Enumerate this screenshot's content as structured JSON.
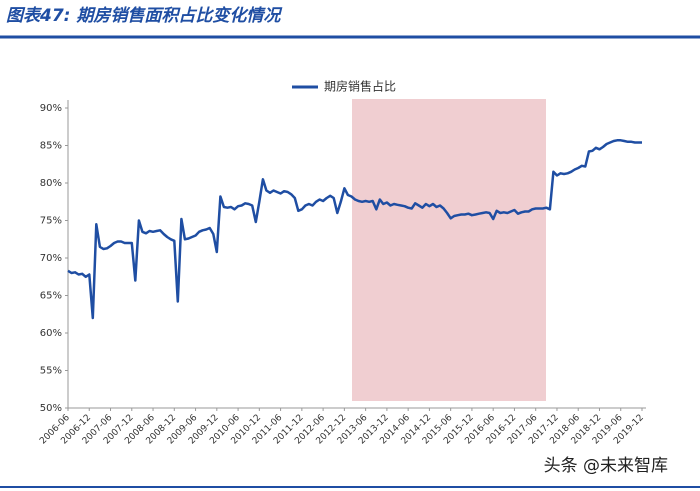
{
  "header": {
    "title": "图表47: 期房销售面积占比变化情况"
  },
  "watermark": "头条 @未来智库",
  "chart_data": {
    "type": "line",
    "categories": [
      "2006-06",
      null,
      null,
      null,
      null,
      null,
      "2006-12",
      null,
      null,
      null,
      null,
      null,
      "2007-06",
      null,
      null,
      null,
      null,
      null,
      "2007-12",
      null,
      null,
      null,
      null,
      null,
      "2008-06",
      null,
      null,
      null,
      null,
      null,
      "2008-12",
      null,
      null,
      null,
      null,
      null,
      "2009-06",
      null,
      null,
      null,
      null,
      null,
      "2009-12",
      null,
      null,
      null,
      null,
      null,
      "2010-06",
      null,
      null,
      null,
      null,
      null,
      "2010-12",
      null,
      null,
      null,
      null,
      null,
      "2011-06",
      null,
      null,
      null,
      null,
      null,
      "2011-12",
      null,
      null,
      null,
      null,
      null,
      "2012-06",
      null,
      null,
      null,
      null,
      null,
      "2012-12",
      null,
      null,
      null,
      null,
      null,
      "2013-06",
      null,
      null,
      null,
      null,
      null,
      "2013-12",
      null,
      null,
      null,
      null,
      null,
      "2014-06",
      null,
      null,
      null,
      null,
      null,
      "2014-12",
      null,
      null,
      null,
      null,
      null,
      "2015-06",
      null,
      null,
      null,
      null,
      null,
      "2015-12",
      null,
      null,
      null,
      null,
      null,
      "2016-06",
      null,
      null,
      null,
      null,
      null,
      "2016-12",
      null,
      null,
      null,
      null,
      null,
      "2017-06",
      null,
      null,
      null,
      null,
      null,
      "2017-12",
      null,
      null,
      null,
      null,
      null,
      "2018-06",
      null,
      null,
      null,
      null,
      null,
      "2018-12",
      null,
      null,
      null,
      null,
      null,
      "2019-06",
      null,
      null,
      null,
      null,
      null,
      "2019-12"
    ],
    "series": [
      {
        "name": "期房销售占比",
        "color": "#1f4ea3",
        "values": [
          68.3,
          68.0,
          68.1,
          67.8,
          67.9,
          67.5,
          67.8,
          62,
          74.5,
          71.5,
          71.2,
          71.3,
          71.6,
          72.0,
          72.2,
          72.2,
          72.0,
          72.0,
          72.0,
          67,
          75,
          73.5,
          73.3,
          73.6,
          73.5,
          73.6,
          73.7,
          73.2,
          72.8,
          72.5,
          72.3,
          64.2,
          75.2,
          72.5,
          72.6,
          72.8,
          73,
          73.5,
          73.7,
          73.8,
          74,
          73.2,
          70.8,
          78.2,
          76.8,
          76.7,
          76.8,
          76.5,
          76.9,
          77,
          77.3,
          77.2,
          77,
          74.8,
          77.5,
          80.5,
          79,
          78.7,
          79,
          78.8,
          78.6,
          78.9,
          78.8,
          78.5,
          78,
          76.3,
          76.5,
          77,
          77.2,
          77,
          77.5,
          77.8,
          77.6,
          78,
          78.3,
          78,
          76,
          77.5,
          79.3,
          78.4,
          78.2,
          77.8,
          77.6,
          77.5,
          77.6,
          77.5,
          77.6,
          76.5,
          77.8,
          77.2,
          77.4,
          77.0,
          77.2,
          77.1,
          77.0,
          76.9,
          76.7,
          76.6,
          77.3,
          77.0,
          76.7,
          77.2,
          76.9,
          77.2,
          76.8,
          77.0,
          76.6,
          76.0,
          75.3,
          75.6,
          75.7,
          75.8,
          75.8,
          75.9,
          75.7,
          75.8,
          75.9,
          76.0,
          76.1,
          76.0,
          75.2,
          76.3,
          76.0,
          76.1,
          76.0,
          76.2,
          76.4,
          75.9,
          76.1,
          76.2,
          76.2,
          76.5,
          76.6,
          76.6,
          76.6,
          76.7,
          76.5,
          81.5,
          81.0,
          81.3,
          81.2,
          81.3,
          81.5,
          81.8,
          82.0,
          82.3,
          82.2,
          84.2,
          84.3,
          84.7,
          84.5,
          84.8,
          85.2,
          85.4,
          85.6,
          85.7,
          85.7,
          85.6,
          85.5,
          85.5,
          85.4,
          85.4,
          85.4
        ]
      }
    ],
    "ylim": [
      50,
      90
    ],
    "yticks": [
      {
        "value": 50,
        "label": "50%"
      },
      {
        "value": 55,
        "label": "55%"
      },
      {
        "value": 60,
        "label": "60%"
      },
      {
        "value": 65,
        "label": "65%"
      },
      {
        "value": 70,
        "label": "70%"
      },
      {
        "value": 75,
        "label": "75%"
      },
      {
        "value": 80,
        "label": "80%"
      },
      {
        "value": 85,
        "label": "85%"
      },
      {
        "value": 90,
        "label": "90%"
      }
    ],
    "legend": "top",
    "grid": false
  }
}
